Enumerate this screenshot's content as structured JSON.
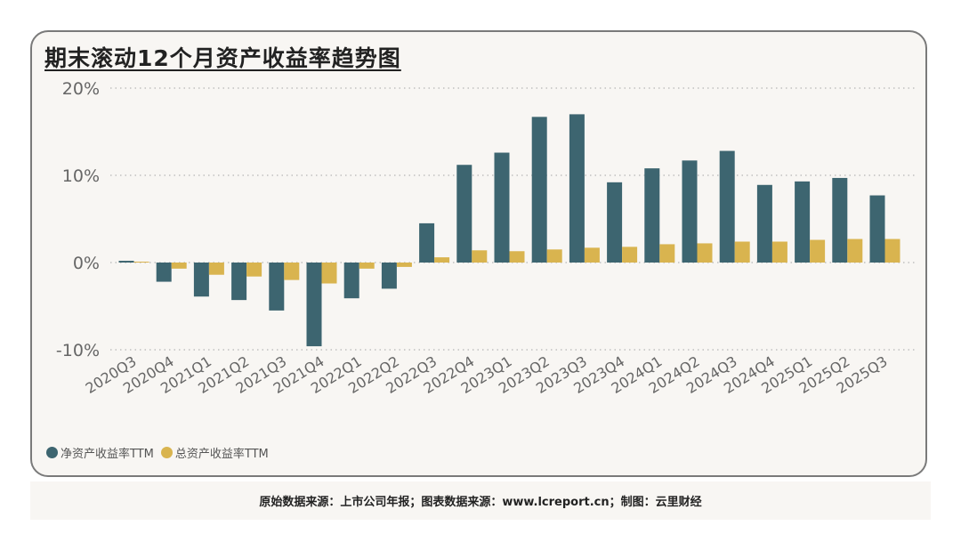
{
  "colors": {
    "series0": "#3d6570",
    "series1": "#d9b44f",
    "grid": "#b5b5b5",
    "axis_text": "#666666"
  },
  "chart_data": {
    "type": "bar",
    "title": "期末滚动12个月资产收益率趋势图",
    "categories": [
      "2020Q3",
      "2020Q4",
      "2021Q1",
      "2021Q2",
      "2021Q3",
      "2021Q4",
      "2022Q1",
      "2022Q2",
      "2022Q3",
      "2022Q4",
      "2023Q1",
      "2023Q2",
      "2023Q3",
      "2023Q4",
      "2024Q1",
      "2024Q2",
      "2024Q3",
      "2024Q4",
      "2025Q1",
      "2025Q2",
      "2025Q3"
    ],
    "series": [
      {
        "name": "净资产收益率TTM",
        "values": [
          0.2,
          -2.2,
          -3.9,
          -4.3,
          -5.5,
          -9.6,
          -4.1,
          -3.0,
          4.5,
          11.2,
          12.6,
          16.7,
          17.0,
          9.2,
          10.8,
          11.7,
          12.8,
          8.9,
          9.3,
          9.7,
          7.7
        ]
      },
      {
        "name": "总资产收益率TTM",
        "values": [
          0.1,
          -0.7,
          -1.4,
          -1.6,
          -2.0,
          -2.4,
          -0.7,
          -0.5,
          0.6,
          1.4,
          1.3,
          1.5,
          1.7,
          1.8,
          2.1,
          2.2,
          2.4,
          2.4,
          2.6,
          2.7,
          2.7
        ]
      }
    ],
    "yticks": [
      "20%",
      "10%",
      "0%",
      "-10%"
    ],
    "ytick_values": [
      20,
      10,
      0,
      -10
    ],
    "ylim": [
      -10,
      20
    ],
    "grid": "dotted horizontal",
    "legend": "bottom-left"
  },
  "footer": {
    "source": "原始数据来源：上市公司年报；图表数据来源：www.lcreport.cn；制图：云里财经"
  }
}
